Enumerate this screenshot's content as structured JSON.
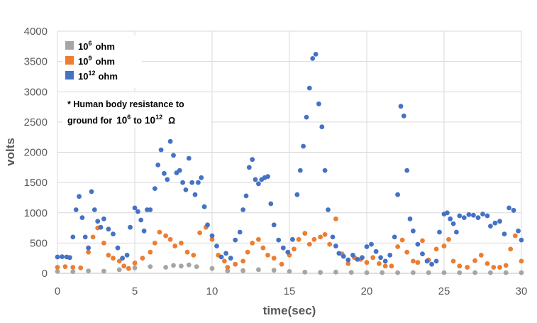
{
  "chart_data": {
    "type": "scatter",
    "xlabel": "time(sec)",
    "ylabel": "volts",
    "xlim": [
      0,
      30
    ],
    "ylim": [
      0,
      4000
    ],
    "x_ticks": [
      "0",
      "5",
      "10",
      "15",
      "20",
      "25",
      "30"
    ],
    "y_ticks": [
      "0",
      "500",
      "1000",
      "1500",
      "2000",
      "2500",
      "3000",
      "3500",
      "4000"
    ],
    "grid": true,
    "legend_position": "top-left",
    "legend": [
      {
        "base": "10",
        "exp": "6",
        "unit": "ohm",
        "color": "#a5a5a5"
      },
      {
        "base": "10",
        "exp": "9",
        "unit": "ohm",
        "color": "#ed7d31"
      },
      {
        "base": "10",
        "exp": "12",
        "unit": "ohm",
        "color": "#4472c4"
      }
    ],
    "annotation": {
      "line1": "* Human body  resistance to",
      "line2_pre": "ground  for",
      "a_base": "10",
      "a_exp": "6",
      "mid": "to",
      "b_base": "10",
      "b_exp": "12",
      "unit": "Ω"
    },
    "series": [
      {
        "key": "ohm_1e6",
        "color": "#a5a5a5",
        "points": [
          [
            0,
            30
          ],
          [
            1,
            28
          ],
          [
            2,
            40
          ],
          [
            3,
            35
          ],
          [
            4,
            60
          ],
          [
            5,
            90
          ],
          [
            6,
            110
          ],
          [
            7,
            100
          ],
          [
            7.5,
            130
          ],
          [
            8,
            120
          ],
          [
            8.5,
            140
          ],
          [
            9,
            110
          ],
          [
            10,
            80
          ],
          [
            11,
            40
          ],
          [
            12,
            45
          ],
          [
            13,
            60
          ],
          [
            14,
            50
          ],
          [
            15,
            30
          ],
          [
            16,
            20
          ],
          [
            17,
            15
          ],
          [
            18,
            20
          ],
          [
            19,
            15
          ],
          [
            20,
            10
          ],
          [
            21,
            12
          ],
          [
            22,
            10
          ],
          [
            23,
            12
          ],
          [
            24,
            10
          ],
          [
            25,
            10
          ],
          [
            26,
            10
          ],
          [
            27,
            12
          ],
          [
            28,
            10
          ],
          [
            29,
            10
          ],
          [
            30,
            10
          ]
        ]
      },
      {
        "key": "ohm_1e9",
        "color": "#ed7d31",
        "points": [
          [
            0,
            100
          ],
          [
            0.5,
            110
          ],
          [
            1,
            100
          ],
          [
            1.5,
            90
          ],
          [
            2,
            350
          ],
          [
            2.3,
            600
          ],
          [
            2.6,
            750
          ],
          [
            3,
            500
          ],
          [
            3.3,
            300
          ],
          [
            3.6,
            250
          ],
          [
            4,
            200
          ],
          [
            4.3,
            120
          ],
          [
            4.6,
            80
          ],
          [
            5,
            170
          ],
          [
            5.5,
            250
          ],
          [
            6,
            350
          ],
          [
            6.3,
            500
          ],
          [
            6.6,
            680
          ],
          [
            7,
            620
          ],
          [
            7.3,
            560
          ],
          [
            7.6,
            450
          ],
          [
            8,
            500
          ],
          [
            8.4,
            350
          ],
          [
            8.8,
            300
          ],
          [
            9.2,
            670
          ],
          [
            9.6,
            760
          ],
          [
            10,
            560
          ],
          [
            10.4,
            300
          ],
          [
            10.8,
            200
          ],
          [
            11,
            100
          ],
          [
            11.5,
            150
          ],
          [
            12,
            200
          ],
          [
            12.3,
            350
          ],
          [
            12.6,
            500
          ],
          [
            13,
            560
          ],
          [
            13.3,
            420
          ],
          [
            13.6,
            300
          ],
          [
            14,
            250
          ],
          [
            14.5,
            150
          ],
          [
            15,
            300
          ],
          [
            15.3,
            400
          ],
          [
            15.6,
            560
          ],
          [
            16,
            660
          ],
          [
            16.3,
            480
          ],
          [
            16.6,
            560
          ],
          [
            17,
            600
          ],
          [
            17.3,
            640
          ],
          [
            17.6,
            480
          ],
          [
            18,
            900
          ],
          [
            18.4,
            320
          ],
          [
            18.8,
            160
          ],
          [
            19.2,
            260
          ],
          [
            19.6,
            230
          ],
          [
            20,
            180
          ],
          [
            20.4,
            260
          ],
          [
            20.8,
            160
          ],
          [
            21.2,
            120
          ],
          [
            21.6,
            120
          ],
          [
            22,
            440
          ],
          [
            22.3,
            550
          ],
          [
            22.6,
            350
          ],
          [
            23,
            200
          ],
          [
            23.3,
            180
          ],
          [
            23.6,
            540
          ],
          [
            24,
            220
          ],
          [
            24.5,
            400
          ],
          [
            25,
            450
          ],
          [
            25.3,
            560
          ],
          [
            25.6,
            200
          ],
          [
            26,
            120
          ],
          [
            26.5,
            100
          ],
          [
            27,
            210
          ],
          [
            27.4,
            300
          ],
          [
            27.8,
            160
          ],
          [
            28.2,
            100
          ],
          [
            28.6,
            100
          ],
          [
            29,
            130
          ],
          [
            29.3,
            400
          ],
          [
            29.6,
            620
          ],
          [
            30,
            200
          ]
        ]
      },
      {
        "key": "ohm_1e12",
        "color": "#4472c4",
        "points": [
          [
            0,
            270
          ],
          [
            0.3,
            275
          ],
          [
            0.6,
            270
          ],
          [
            0.8,
            260
          ],
          [
            1,
            600
          ],
          [
            1.2,
            1050
          ],
          [
            1.4,
            1270
          ],
          [
            1.6,
            920
          ],
          [
            1.8,
            600
          ],
          [
            2,
            420
          ],
          [
            2.2,
            1350
          ],
          [
            2.4,
            1050
          ],
          [
            2.6,
            860
          ],
          [
            2.8,
            760
          ],
          [
            3,
            900
          ],
          [
            3.3,
            730
          ],
          [
            3.6,
            650
          ],
          [
            3.9,
            420
          ],
          [
            4.2,
            250
          ],
          [
            4.5,
            300
          ],
          [
            4.7,
            760
          ],
          [
            5,
            1080
          ],
          [
            5.2,
            1020
          ],
          [
            5.4,
            880
          ],
          [
            5.6,
            700
          ],
          [
            5.8,
            1050
          ],
          [
            6,
            1050
          ],
          [
            6.3,
            1400
          ],
          [
            6.5,
            1790
          ],
          [
            6.7,
            2040
          ],
          [
            6.9,
            1650
          ],
          [
            7.1,
            1550
          ],
          [
            7.3,
            2180
          ],
          [
            7.5,
            1950
          ],
          [
            7.7,
            1660
          ],
          [
            7.9,
            1700
          ],
          [
            8.1,
            1500
          ],
          [
            8.3,
            1380
          ],
          [
            8.5,
            1900
          ],
          [
            8.7,
            1500
          ],
          [
            8.9,
            1300
          ],
          [
            9.1,
            1500
          ],
          [
            9.3,
            1580
          ],
          [
            9.5,
            1100
          ],
          [
            9.7,
            800
          ],
          [
            10,
            620
          ],
          [
            10.3,
            450
          ],
          [
            10.6,
            270
          ],
          [
            10.9,
            330
          ],
          [
            11.2,
            250
          ],
          [
            11.5,
            550
          ],
          [
            11.8,
            680
          ],
          [
            12,
            1050
          ],
          [
            12.2,
            1280
          ],
          [
            12.4,
            1750
          ],
          [
            12.6,
            1880
          ],
          [
            12.8,
            1550
          ],
          [
            13,
            1480
          ],
          [
            13.2,
            1550
          ],
          [
            13.4,
            1580
          ],
          [
            13.6,
            1600
          ],
          [
            13.8,
            1150
          ],
          [
            14,
            800
          ],
          [
            14.3,
            550
          ],
          [
            14.6,
            420
          ],
          [
            14.9,
            350
          ],
          [
            15.2,
            560
          ],
          [
            15.5,
            1300
          ],
          [
            15.7,
            1700
          ],
          [
            15.9,
            2100
          ],
          [
            16.1,
            2580
          ],
          [
            16.3,
            3060
          ],
          [
            16.5,
            3550
          ],
          [
            16.7,
            3620
          ],
          [
            16.9,
            2800
          ],
          [
            17.1,
            2420
          ],
          [
            17.3,
            1700
          ],
          [
            17.5,
            1050
          ],
          [
            17.8,
            600
          ],
          [
            18,
            450
          ],
          [
            18.2,
            330
          ],
          [
            18.5,
            280
          ],
          [
            18.8,
            220
          ],
          [
            19.1,
            300
          ],
          [
            19.4,
            230
          ],
          [
            19.7,
            260
          ],
          [
            20,
            440
          ],
          [
            20.3,
            480
          ],
          [
            20.6,
            360
          ],
          [
            20.9,
            260
          ],
          [
            21.2,
            200
          ],
          [
            21.5,
            300
          ],
          [
            21.8,
            600
          ],
          [
            22,
            1300
          ],
          [
            22.2,
            2760
          ],
          [
            22.4,
            2600
          ],
          [
            22.6,
            1700
          ],
          [
            22.8,
            900
          ],
          [
            23,
            700
          ],
          [
            23.3,
            480
          ],
          [
            23.6,
            320
          ],
          [
            23.9,
            200
          ],
          [
            24.2,
            150
          ],
          [
            24.5,
            200
          ],
          [
            24.7,
            680
          ],
          [
            25,
            980
          ],
          [
            25.2,
            1000
          ],
          [
            25.4,
            900
          ],
          [
            25.6,
            820
          ],
          [
            25.8,
            680
          ],
          [
            26,
            950
          ],
          [
            26.3,
            920
          ],
          [
            26.6,
            970
          ],
          [
            26.9,
            960
          ],
          [
            27.2,
            920
          ],
          [
            27.5,
            980
          ],
          [
            27.8,
            950
          ],
          [
            28,
            780
          ],
          [
            28.3,
            830
          ],
          [
            28.6,
            860
          ],
          [
            28.9,
            650
          ],
          [
            29.2,
            1080
          ],
          [
            29.5,
            1040
          ],
          [
            29.8,
            700
          ],
          [
            30,
            550
          ]
        ]
      }
    ]
  }
}
